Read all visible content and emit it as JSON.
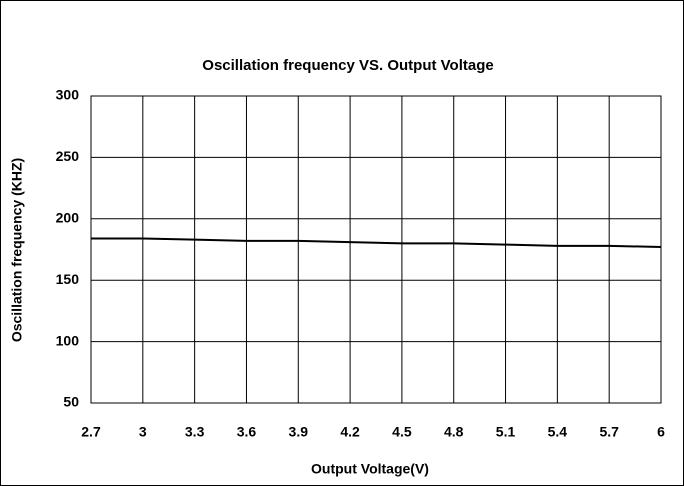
{
  "chart_data": {
    "type": "line",
    "title": "Oscillation frequency VS. Output Voltage",
    "x_label": "Output Voltage(V)",
    "y_label": "Oscillation frequency (KHZ)",
    "x": [
      2.7,
      3,
      3.3,
      3.6,
      3.9,
      4.2,
      4.5,
      4.8,
      5.1,
      5.4,
      5.7,
      6
    ],
    "series": [
      {
        "name": "Oscillation frequency",
        "color": "#000000",
        "values": [
          184,
          184,
          183,
          182,
          182,
          181,
          180,
          180,
          179,
          178,
          178,
          177
        ]
      }
    ],
    "xlim": [
      2.7,
      6
    ],
    "xticks": [
      2.7,
      3,
      3.3,
      3.6,
      3.9,
      4.2,
      4.5,
      4.8,
      5.1,
      5.4,
      5.7,
      6
    ],
    "ylim": [
      50,
      300
    ],
    "yticks": [
      50,
      100,
      150,
      200,
      250,
      300
    ],
    "grid": true
  }
}
